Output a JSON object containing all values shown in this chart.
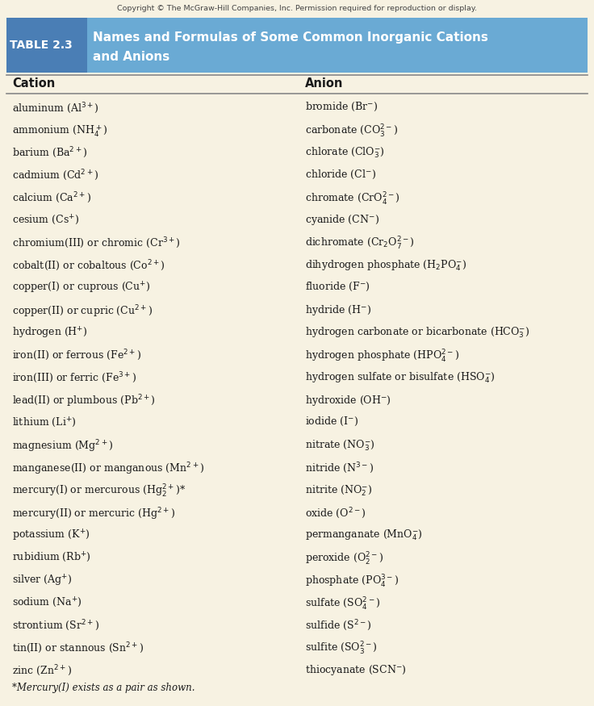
{
  "copyright": "Copyright © The McGraw-Hill Companies, Inc. Permission required for reproduction or display.",
  "table_label": "TABLE 2.3",
  "table_title_line1": "Names and Formulas of Some Common Inorganic Cations",
  "table_title_line2": "and Anions",
  "col1_header": "Cation",
  "col2_header": "Anion",
  "bg_color": "#f7f2e2",
  "header_main_color": "#6aaad4",
  "header_label_color": "#4a7eb5",
  "header_text_color": "#ffffff",
  "text_color": "#1a1a1a",
  "line_color": "#888888",
  "footnote": "*Mercury(I) exists as a pair as shown.",
  "rows": [
    [
      "aluminum (Al$^{3+}$)",
      "bromide (Br$^{-}$)"
    ],
    [
      "ammonium (NH$_4^+$)",
      "carbonate (CO$_3^{2-}$)"
    ],
    [
      "barium (Ba$^{2+}$)",
      "chlorate (ClO$_3^{-}$)"
    ],
    [
      "cadmium (Cd$^{2+}$)",
      "chloride (Cl$^{-}$)"
    ],
    [
      "calcium (Ca$^{2+}$)",
      "chromate (CrO$_4^{2-}$)"
    ],
    [
      "cesium (Cs$^{+}$)",
      "cyanide (CN$^{-}$)"
    ],
    [
      "chromium(III) or chromic (Cr$^{3+}$)",
      "dichromate (Cr$_2$O$_7^{2-}$)"
    ],
    [
      "cobalt(II) or cobaltous (Co$^{2+}$)",
      "dihydrogen phosphate (H$_2$PO$_4^{-}$)"
    ],
    [
      "copper(I) or cuprous (Cu$^{+}$)",
      "fluoride (F$^{-}$)"
    ],
    [
      "copper(II) or cupric (Cu$^{2+}$)",
      "hydride (H$^{-}$)"
    ],
    [
      "hydrogen (H$^{+}$)",
      "hydrogen carbonate or bicarbonate (HCO$_3^{-}$)"
    ],
    [
      "iron(II) or ferrous (Fe$^{2+}$)",
      "hydrogen phosphate (HPO$_4^{2-}$)"
    ],
    [
      "iron(III) or ferric (Fe$^{3+}$)",
      "hydrogen sulfate or bisulfate (HSO$_4^{-}$)"
    ],
    [
      "lead(II) or plumbous (Pb$^{2+}$)",
      "hydroxide (OH$^{-}$)"
    ],
    [
      "lithium (Li$^{+}$)",
      "iodide (I$^{-}$)"
    ],
    [
      "magnesium (Mg$^{2+}$)",
      "nitrate (NO$_3^{-}$)"
    ],
    [
      "manganese(II) or manganous (Mn$^{2+}$)",
      "nitride (N$^{3-}$)"
    ],
    [
      "mercury(I) or mercurous (Hg$_2^{2+}$)*",
      "nitrite (NO$_2^{-}$)"
    ],
    [
      "mercury(II) or mercuric (Hg$^{2+}$)",
      "oxide (O$^{2-}$)"
    ],
    [
      "potassium (K$^{+}$)",
      "permanganate (MnO$_4^{-}$)"
    ],
    [
      "rubidium (Rb$^{+}$)",
      "peroxide (O$_2^{2-}$)"
    ],
    [
      "silver (Ag$^{+}$)",
      "phosphate (PO$_4^{3-}$)"
    ],
    [
      "sodium (Na$^{+}$)",
      "sulfate (SO$_4^{2-}$)"
    ],
    [
      "strontium (Sr$^{2+}$)",
      "sulfide (S$^{2-}$)"
    ],
    [
      "tin(II) or stannous (Sn$^{2+}$)",
      "sulfite (SO$_3^{2-}$)"
    ],
    [
      "zinc (Zn$^{2+}$)",
      "thiocyanate (SCN$^{-}$)"
    ]
  ]
}
